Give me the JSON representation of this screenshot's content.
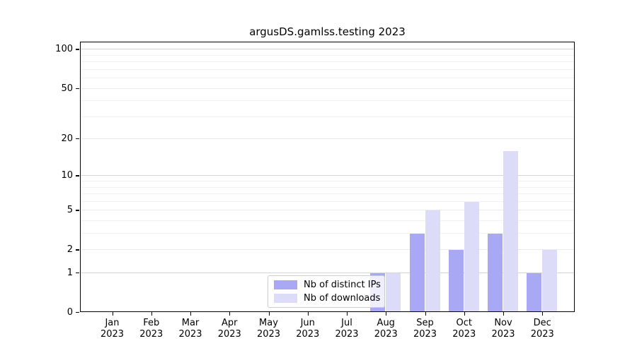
{
  "title": "argusDS.gamlss.testing 2023",
  "legend": {
    "items": [
      {
        "label": "Nb of distinct IPs",
        "color": "#a8a8f5"
      },
      {
        "label": "Nb of downloads",
        "color": "#dcdcf8"
      }
    ]
  },
  "chart_data": {
    "type": "bar",
    "title": "argusDS.gamlss.testing 2023",
    "categories": [
      "Jan",
      "Feb",
      "Mar",
      "Apr",
      "May",
      "Jun",
      "Jul",
      "Aug",
      "Sep",
      "Oct",
      "Nov",
      "Dec"
    ],
    "category_year": "2023",
    "series": [
      {
        "name": "Nb of distinct IPs",
        "color": "#a8a8f5",
        "values": [
          0,
          0,
          0,
          0,
          0,
          0,
          0,
          1,
          3,
          2,
          3,
          1
        ]
      },
      {
        "name": "Nb of downloads",
        "color": "#dcdcf8",
        "values": [
          0,
          0,
          0,
          0,
          0,
          0,
          0,
          1,
          5,
          6,
          16,
          2
        ]
      }
    ],
    "yscale": "log1p",
    "ylim": [
      0,
      114
    ],
    "yticks": [
      0,
      1,
      2,
      5,
      10,
      20,
      50,
      100
    ],
    "minor_yticks": [
      3,
      4,
      6,
      7,
      8,
      9,
      30,
      40,
      60,
      70,
      80,
      90
    ],
    "decade_yticks": [
      1,
      10,
      100
    ],
    "grid": "horizontal",
    "legend_position": "lower-center-inside",
    "colors": {
      "grid_major": "#e9e9e9",
      "grid_decade": "#d4d4d4",
      "grid_minor": "#f2f2f2",
      "axis_frame": "#000000"
    }
  }
}
